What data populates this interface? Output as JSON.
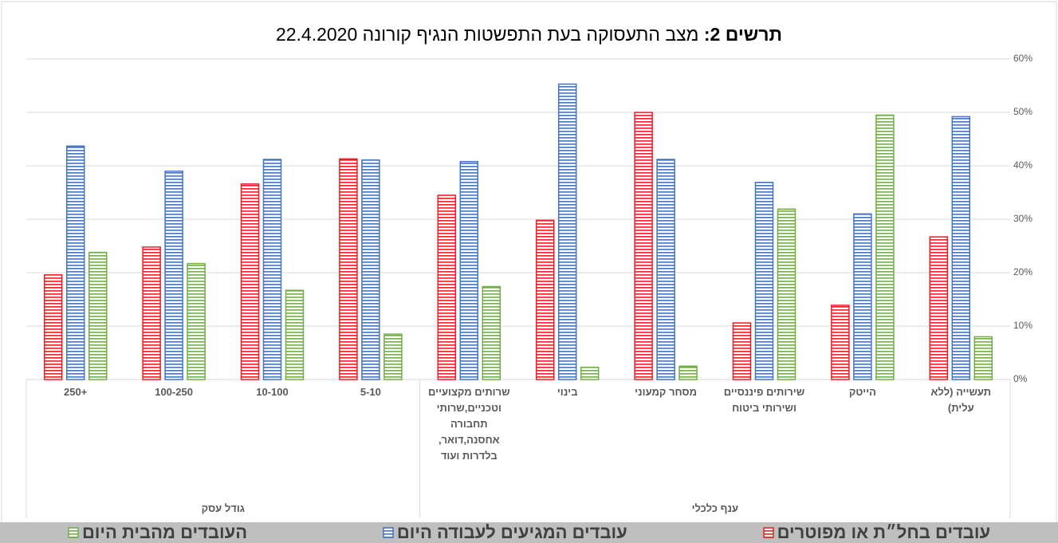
{
  "chart_data": {
    "type": "bar",
    "title_prefix": "תרשים 2:",
    "title": "מצב התעסוקה בעת התפשטות הנגיף קורונה  22.4.2020",
    "groups": [
      {
        "label": "ענף כלכלי",
        "categories": [
          "תעשייה (ללא עלית)",
          "הייטק",
          "שירותים פיננסיים ושירותי ביטוח",
          "מסחר קמעוני",
          "בינוי",
          "שרותים מקצועיים וטכניים,שרותי תחבורה אחסנה,דואר, בלדרות ועוד"
        ]
      },
      {
        "label": "גודל עסק",
        "categories": [
          "5-10",
          "10-100",
          "100-250",
          "+250"
        ]
      }
    ],
    "series": [
      {
        "name": "עובדים בחל״ת או מפוטרים",
        "color": "#ee1c25",
        "values": [
          26.7,
          13.9,
          10.6,
          50,
          29.8,
          34.5,
          41.3,
          36.6,
          24.8,
          19.6
        ]
      },
      {
        "name": "עובדים המגיעים לעבודה היום",
        "color": "#4472c4",
        "values": [
          49.2,
          31,
          36.9,
          41.2,
          55.3,
          40.8,
          41.1,
          41.2,
          39,
          43.7
        ]
      },
      {
        "name": "העובדים מהבית היום",
        "color": "#70ad47",
        "values": [
          8,
          49.5,
          31.9,
          2.5,
          2.3,
          17.4,
          8.5,
          16.7,
          21.7,
          23.8
        ]
      }
    ],
    "ylim": [
      0,
      60
    ],
    "yticks": [
      {
        "value": 0,
        "label": "0%"
      },
      {
        "value": 10,
        "label": "10%"
      },
      {
        "value": 20,
        "label": "20%"
      },
      {
        "value": 30,
        "label": "30%"
      },
      {
        "value": 40,
        "label": "40%"
      },
      {
        "value": 50,
        "label": "50%"
      },
      {
        "value": 60,
        "label": "60%"
      }
    ],
    "grid": true
  }
}
